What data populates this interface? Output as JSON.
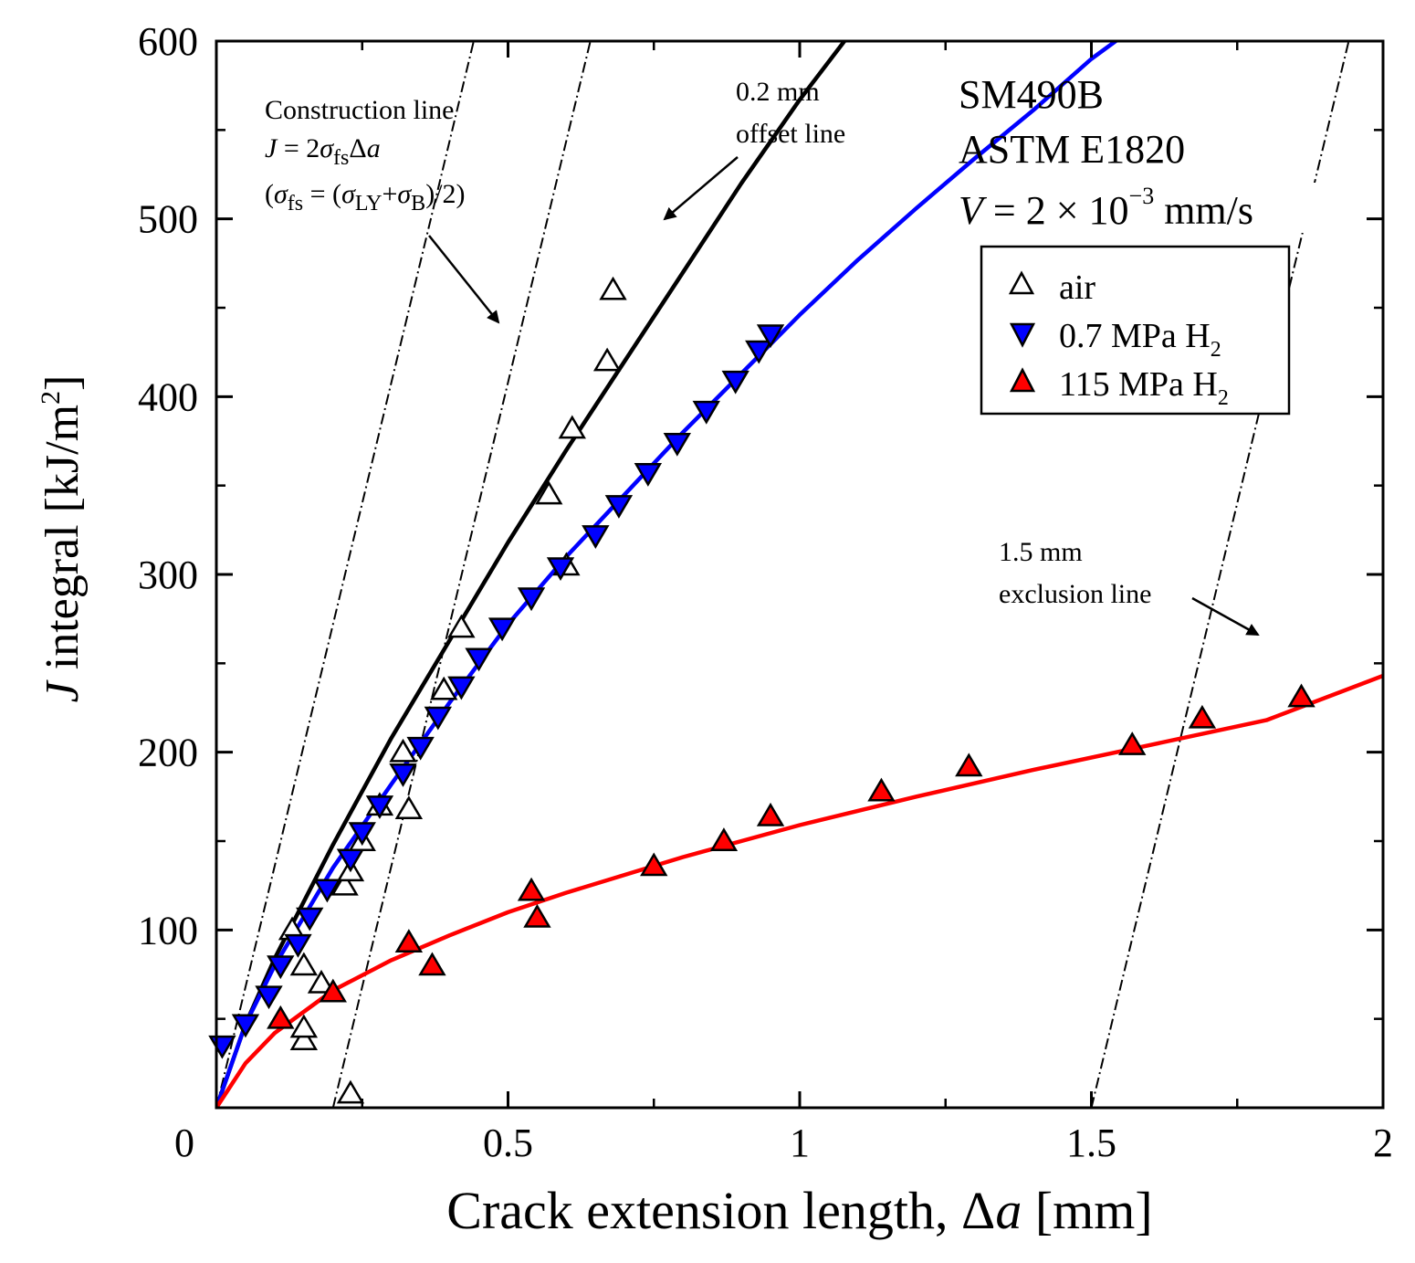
{
  "chart_data": {
    "type": "scatter",
    "xlabel_parts": [
      "Crack extension length, ",
      "Δ",
      "a",
      " [mm]"
    ],
    "ylabel_parts": [
      "J",
      " integral [kJ/m",
      "2",
      "]"
    ],
    "xlim": [
      0,
      2
    ],
    "ylim": [
      0,
      600
    ],
    "x_ticks": [
      0,
      0.5,
      1,
      1.5,
      2
    ],
    "x_tick_labels": [
      "0",
      "0.5",
      "1",
      "1.5",
      "2"
    ],
    "y_ticks": [
      0,
      100,
      200,
      300,
      400,
      500,
      600
    ],
    "y_tick_labels": [
      "0",
      "100",
      "200",
      "300",
      "400",
      "500",
      "600"
    ],
    "specimen": {
      "material": "SM490B",
      "standard": "ASTM E1820",
      "rate_parts": [
        "V",
        " = 2 × 10",
        "−3",
        " mm/s"
      ]
    },
    "annotations": {
      "construction": {
        "line1": "Construction line",
        "line2_parts": [
          "J",
          " = 2",
          "σ",
          "fs",
          "Δ",
          "a"
        ],
        "line3_parts": [
          "(",
          "σ",
          "fs",
          " = (",
          "σ",
          "LY",
          "+",
          "σ",
          "B",
          ")/2)"
        ]
      },
      "offset": {
        "line1": "0.2 mm",
        "line2": "offset line"
      },
      "exclusion": {
        "line1": "1.5 mm",
        "line2": "exclusion line"
      }
    },
    "reference_lines": [
      {
        "name": "construction-line",
        "x0": 0.0,
        "slope": 1360,
        "style": "dash-dot"
      },
      {
        "name": "offset-line-0.2mm",
        "x0": 0.2,
        "slope": 1360,
        "style": "dash-dot"
      },
      {
        "name": "exclusion-line-1.5mm",
        "x0": 1.5,
        "slope": 1360,
        "style": "dash-dot"
      }
    ],
    "legend": [
      {
        "label": "air",
        "marker": "triangle-up-open"
      },
      {
        "label_parts": [
          "0.7 MPa H",
          "2"
        ],
        "marker": "triangle-down-filled",
        "color": "#0000ff"
      },
      {
        "label_parts": [
          "115 MPa H",
          "2"
        ],
        "marker": "triangle-up-filled",
        "color": "#ff0000"
      }
    ],
    "series": [
      {
        "name": "air",
        "marker": "triangle-up-open",
        "color": "#ffffff",
        "points": [
          [
            0.13,
            100
          ],
          [
            0.15,
            80
          ],
          [
            0.15,
            38
          ],
          [
            0.15,
            45
          ],
          [
            0.18,
            70
          ],
          [
            0.22,
            125
          ],
          [
            0.23,
            133
          ],
          [
            0.25,
            150
          ],
          [
            0.28,
            170
          ],
          [
            0.32,
            200
          ],
          [
            0.33,
            168
          ],
          [
            0.39,
            235
          ],
          [
            0.42,
            270
          ],
          [
            0.57,
            345
          ],
          [
            0.6,
            305
          ],
          [
            0.61,
            382
          ],
          [
            0.67,
            420
          ],
          [
            0.68,
            460
          ],
          [
            0.23,
            8
          ]
        ]
      },
      {
        "name": "0.7 MPa H2",
        "marker": "triangle-down-filled",
        "color": "#0000ff",
        "points": [
          [
            0.01,
            35
          ],
          [
            0.05,
            47
          ],
          [
            0.09,
            63
          ],
          [
            0.11,
            80
          ],
          [
            0.14,
            92
          ],
          [
            0.16,
            107
          ],
          [
            0.19,
            123
          ],
          [
            0.23,
            140
          ],
          [
            0.25,
            155
          ],
          [
            0.28,
            170
          ],
          [
            0.32,
            188
          ],
          [
            0.35,
            203
          ],
          [
            0.38,
            220
          ],
          [
            0.42,
            237
          ],
          [
            0.45,
            253
          ],
          [
            0.49,
            270
          ],
          [
            0.54,
            287
          ],
          [
            0.59,
            304
          ],
          [
            0.65,
            322
          ],
          [
            0.69,
            339
          ],
          [
            0.74,
            357
          ],
          [
            0.79,
            374
          ],
          [
            0.84,
            392
          ],
          [
            0.89,
            409
          ],
          [
            0.93,
            426
          ],
          [
            0.95,
            435
          ]
        ]
      },
      {
        "name": "115 MPa H2",
        "marker": "triangle-up-filled",
        "color": "#ff0000",
        "points": [
          [
            0.11,
            50
          ],
          [
            0.2,
            65
          ],
          [
            0.33,
            93
          ],
          [
            0.37,
            80
          ],
          [
            0.54,
            122
          ],
          [
            0.55,
            107
          ],
          [
            0.75,
            136
          ],
          [
            0.87,
            150
          ],
          [
            0.95,
            164
          ],
          [
            1.14,
            178
          ],
          [
            1.29,
            192
          ],
          [
            1.57,
            204
          ],
          [
            1.69,
            219
          ],
          [
            1.86,
            231
          ]
        ]
      }
    ],
    "fit_curves": [
      {
        "name": "air-fit",
        "color": "#000000",
        "points": [
          [
            0.0,
            0
          ],
          [
            0.05,
            47
          ],
          [
            0.1,
            84
          ],
          [
            0.2,
            148
          ],
          [
            0.3,
            208
          ],
          [
            0.4,
            263
          ],
          [
            0.5,
            318
          ],
          [
            0.6,
            370
          ],
          [
            0.7,
            420
          ],
          [
            0.8,
            470
          ],
          [
            0.9,
            520
          ],
          [
            1.0,
            567
          ],
          [
            1.1,
            610
          ]
        ]
      },
      {
        "name": "0.7 MPa H2 fit",
        "color": "#0000ff",
        "points": [
          [
            0.0,
            0
          ],
          [
            0.05,
            47
          ],
          [
            0.1,
            80
          ],
          [
            0.2,
            135
          ],
          [
            0.3,
            182
          ],
          [
            0.4,
            228
          ],
          [
            0.5,
            272
          ],
          [
            0.6,
            310
          ],
          [
            0.7,
            345
          ],
          [
            0.8,
            380
          ],
          [
            0.9,
            413
          ],
          [
            1.0,
            446
          ],
          [
            1.1,
            477
          ],
          [
            1.2,
            506
          ],
          [
            1.3,
            534
          ],
          [
            1.4,
            561
          ],
          [
            1.5,
            590
          ],
          [
            1.55,
            602
          ]
        ]
      },
      {
        "name": "115 MPa H2 fit",
        "color": "#ff0000",
        "points": [
          [
            0.0,
            0
          ],
          [
            0.05,
            25
          ],
          [
            0.1,
            42
          ],
          [
            0.2,
            66
          ],
          [
            0.3,
            83
          ],
          [
            0.4,
            97
          ],
          [
            0.5,
            110
          ],
          [
            0.6,
            121
          ],
          [
            0.7,
            131
          ],
          [
            0.8,
            141
          ],
          [
            0.9,
            150
          ],
          [
            1.0,
            159
          ],
          [
            1.2,
            175
          ],
          [
            1.4,
            190
          ],
          [
            1.6,
            204
          ],
          [
            1.8,
            218
          ],
          [
            2.0,
            243
          ]
        ]
      }
    ]
  }
}
